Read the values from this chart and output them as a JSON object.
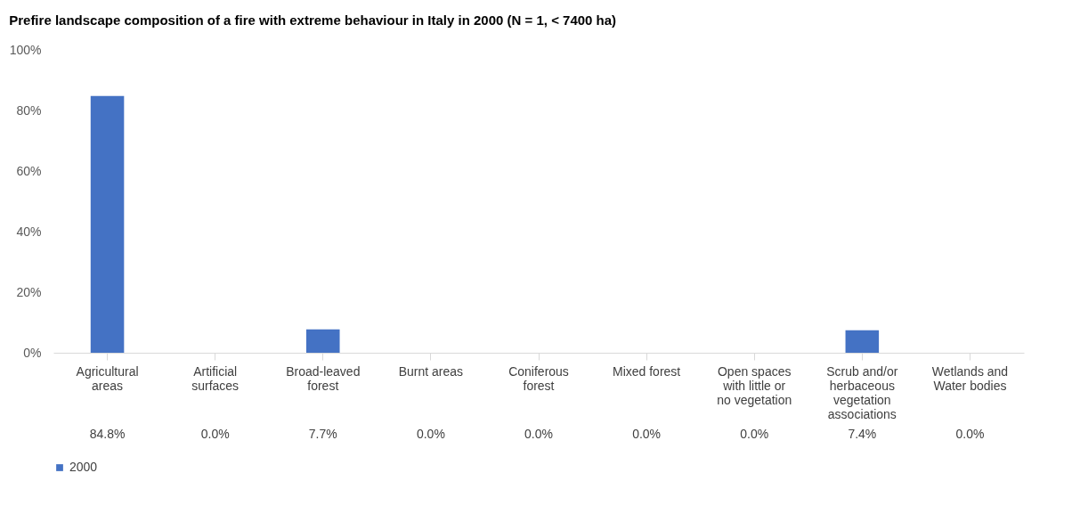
{
  "chart_data": {
    "type": "bar",
    "title": "Prefire landscape composition of a fire with  extreme behaviour in Italy in 2000  (N = 1, < 7400 ha)",
    "categories": [
      "Agricultural areas",
      "Artificial surfaces",
      "Broad-leaved forest",
      "Burnt areas",
      "Coniferous forest",
      "Mixed forest",
      "Open spaces with little or no vegetation",
      "Scrub and/or herbaceous vegetation associations",
      "Wetlands and Water bodies"
    ],
    "series": [
      {
        "name": "2000",
        "color": "#4472c4",
        "values": [
          84.8,
          0.0,
          7.7,
          0.0,
          0.0,
          0.0,
          0.0,
          7.4,
          0.0
        ],
        "value_labels": [
          "84.8%",
          "0.0%",
          "7.7%",
          "0.0%",
          "0.0%",
          "0.0%",
          "0.0%",
          "7.4%",
          "0.0%"
        ]
      }
    ],
    "ylim": [
      0,
      100
    ],
    "yticks": [
      {
        "value": 0,
        "label": "0%"
      },
      {
        "value": 20,
        "label": "20%"
      },
      {
        "value": 40,
        "label": "40%"
      },
      {
        "value": 60,
        "label": "60%"
      },
      {
        "value": 80,
        "label": "80%"
      },
      {
        "value": 100,
        "label": "100%"
      }
    ],
    "grid": false,
    "legend": "bottom left"
  }
}
